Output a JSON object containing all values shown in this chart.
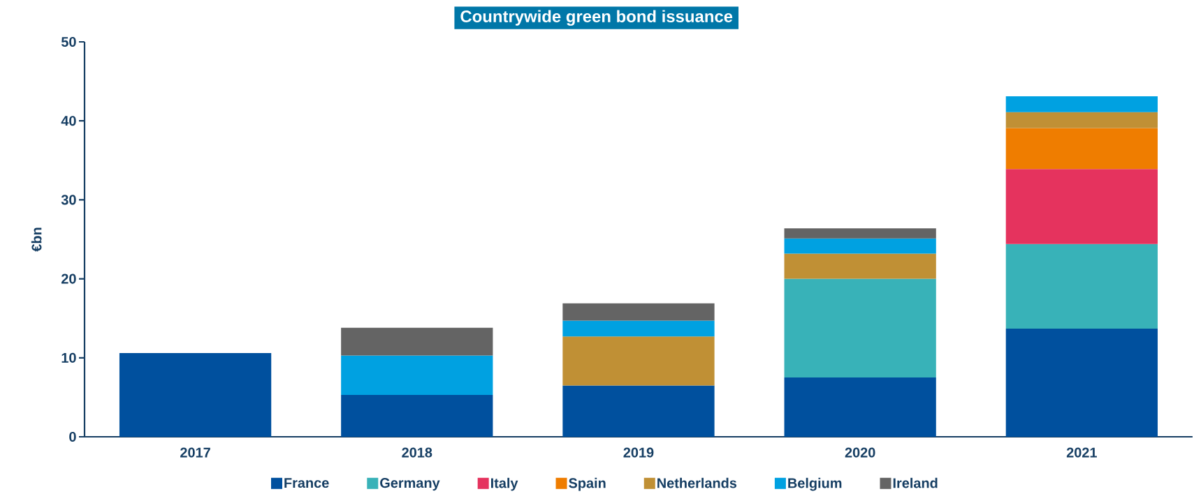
{
  "chart_data": {
    "type": "bar",
    "stacked": true,
    "title": "Countrywide green bond issuance",
    "ylabel": "€bn",
    "categories": [
      "2017",
      "2018",
      "2019",
      "2020",
      "2021"
    ],
    "series": [
      {
        "name": "France",
        "color": "#00509e",
        "values": [
          10.6,
          5.3,
          6.5,
          7.5,
          13.7
        ]
      },
      {
        "name": "Germany",
        "color": "#38b2b8",
        "values": [
          null,
          null,
          null,
          12.5,
          10.7
        ]
      },
      {
        "name": "Italy",
        "color": "#e5335e",
        "values": [
          null,
          null,
          null,
          null,
          9.5
        ]
      },
      {
        "name": "Spain",
        "color": "#ef7d00",
        "values": [
          null,
          null,
          null,
          null,
          5.2
        ]
      },
      {
        "name": "Netherlands",
        "color": "#c09035",
        "values": [
          null,
          null,
          6.2,
          3.2,
          2.0
        ]
      },
      {
        "name": "Belgium",
        "color": "#00a1e1",
        "values": [
          null,
          5.0,
          2.0,
          1.9,
          2.0
        ]
      },
      {
        "name": "Ireland",
        "color": "#646464",
        "values": [
          null,
          3.5,
          2.2,
          1.3,
          null
        ]
      }
    ],
    "ylim": [
      0,
      50
    ],
    "yticks": [
      0,
      10,
      20,
      30,
      40,
      50
    ],
    "grid": false,
    "legend": "bottom"
  }
}
